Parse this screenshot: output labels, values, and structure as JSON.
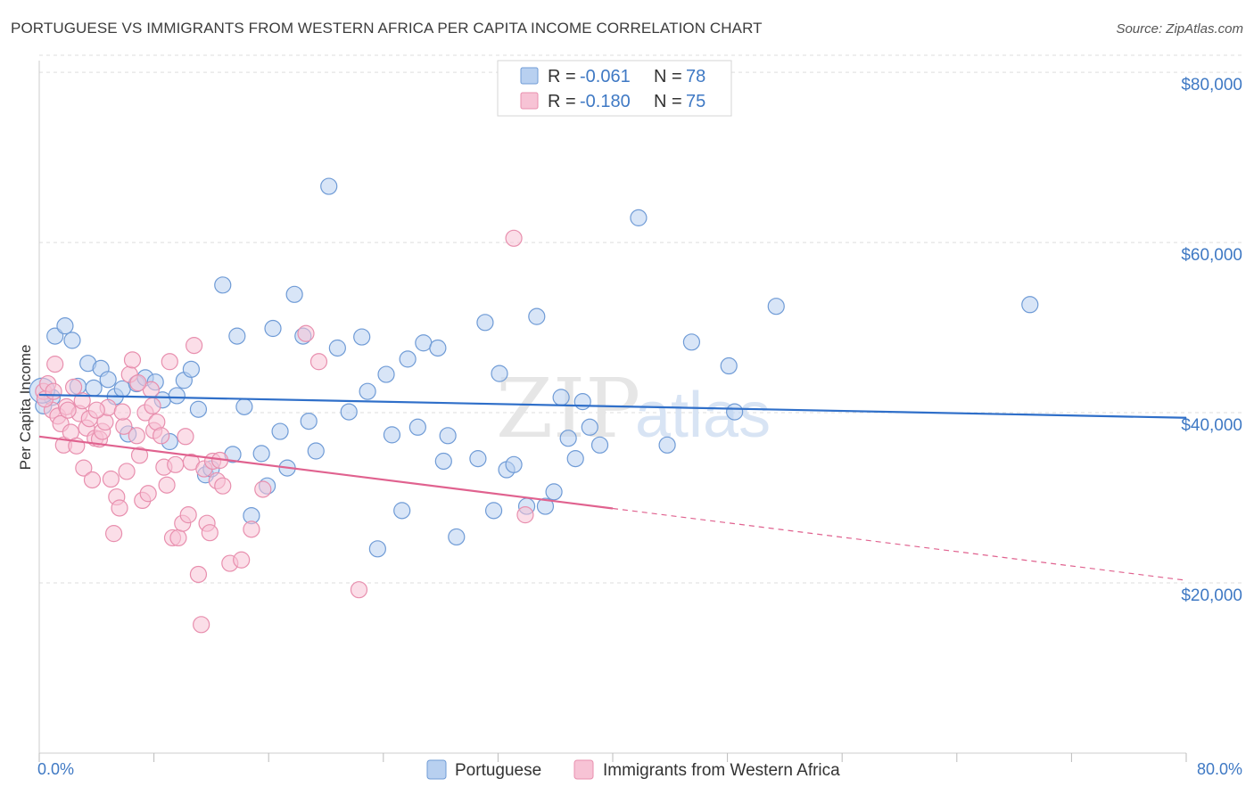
{
  "title": "PORTUGUESE VS IMMIGRANTS FROM WESTERN AFRICA PER CAPITA INCOME CORRELATION CHART",
  "source": "Source: ZipAtlas.com",
  "watermark": {
    "part1": "ZIP",
    "part2": "atlas"
  },
  "colors": {
    "portuguese_fill": "#b8d0f0",
    "portuguese_stroke": "#6f9bd6",
    "portuguese_line": "#2f6fc9",
    "western_africa_fill": "#f7c3d5",
    "western_africa_stroke": "#e88fae",
    "western_africa_line": "#e0628f",
    "axis_text": "#3f79c4",
    "grid": "#dddddd"
  },
  "legend": {
    "rows": [
      {
        "r_label": "R = ",
        "r_value": "-0.061",
        "n_label": "N = ",
        "n_value": "78"
      },
      {
        "r_label": "R = ",
        "r_value": "-0.180",
        "n_label": "N = ",
        "n_value": "75"
      }
    ]
  },
  "chart_data": {
    "type": "scatter",
    "title": "PORTUGUESE VS IMMIGRANTS FROM WESTERN AFRICA PER CAPITA INCOME CORRELATION CHART",
    "xlabel": "",
    "ylabel": "Per Capita Income",
    "xlim": [
      0,
      80
    ],
    "ylim": [
      0,
      82000
    ],
    "x_tick_labels": [
      "0.0%",
      "80.0%"
    ],
    "y_ticks": [
      20000,
      40000,
      60000,
      80000
    ],
    "y_tick_labels": [
      "$20,000",
      "$40,000",
      "$60,000",
      "$80,000"
    ],
    "grid": true,
    "legend_position": "top-center",
    "series": [
      {
        "name": "Portuguese",
        "r": -0.061,
        "n": 78,
        "trend": {
          "x": [
            0,
            80
          ],
          "y": [
            42100,
            39400
          ],
          "dashed_from": null
        },
        "points": [
          [
            0.3,
            40800
          ],
          [
            0.9,
            41800
          ],
          [
            1.1,
            49000
          ],
          [
            1.8,
            50200
          ],
          [
            2.3,
            48500
          ],
          [
            2.7,
            43100
          ],
          [
            3.4,
            45800
          ],
          [
            3.8,
            42900
          ],
          [
            4.3,
            45200
          ],
          [
            4.8,
            43900
          ],
          [
            5.3,
            41900
          ],
          [
            5.8,
            42800
          ],
          [
            6.2,
            37500
          ],
          [
            6.8,
            43400
          ],
          [
            7.4,
            44100
          ],
          [
            8.1,
            43600
          ],
          [
            8.6,
            41500
          ],
          [
            9.1,
            36600
          ],
          [
            9.6,
            42000
          ],
          [
            10.1,
            43800
          ],
          [
            10.6,
            45100
          ],
          [
            11.1,
            40400
          ],
          [
            11.6,
            32700
          ],
          [
            12.0,
            33400
          ],
          [
            12.8,
            55000
          ],
          [
            13.5,
            35100
          ],
          [
            13.8,
            49000
          ],
          [
            14.3,
            40700
          ],
          [
            14.8,
            27900
          ],
          [
            15.5,
            35200
          ],
          [
            15.9,
            31400
          ],
          [
            16.3,
            49900
          ],
          [
            16.8,
            37800
          ],
          [
            17.3,
            33500
          ],
          [
            17.8,
            53900
          ],
          [
            18.4,
            49000
          ],
          [
            18.8,
            39000
          ],
          [
            19.3,
            35500
          ],
          [
            20.2,
            66600
          ],
          [
            20.8,
            47600
          ],
          [
            21.6,
            40100
          ],
          [
            22.5,
            48900
          ],
          [
            22.9,
            42500
          ],
          [
            23.6,
            24000
          ],
          [
            24.2,
            44500
          ],
          [
            24.6,
            37400
          ],
          [
            25.3,
            28500
          ],
          [
            25.7,
            46300
          ],
          [
            26.4,
            38300
          ],
          [
            26.8,
            48200
          ],
          [
            27.8,
            47600
          ],
          [
            28.2,
            34300
          ],
          [
            28.5,
            37300
          ],
          [
            29.1,
            25400
          ],
          [
            30.6,
            34600
          ],
          [
            31.1,
            50600
          ],
          [
            31.7,
            28500
          ],
          [
            32.1,
            44600
          ],
          [
            32.6,
            33300
          ],
          [
            33.1,
            33900
          ],
          [
            34.0,
            29000
          ],
          [
            34.7,
            51300
          ],
          [
            35.3,
            29000
          ],
          [
            35.9,
            30700
          ],
          [
            36.4,
            41800
          ],
          [
            36.9,
            37000
          ],
          [
            37.4,
            34600
          ],
          [
            37.9,
            41300
          ],
          [
            38.4,
            38300
          ],
          [
            39.1,
            36200
          ],
          [
            41.8,
            62900
          ],
          [
            43.8,
            36200
          ],
          [
            45.5,
            48300
          ],
          [
            48.1,
            45500
          ],
          [
            48.5,
            40100
          ],
          [
            51.4,
            52500
          ],
          [
            69.1,
            52700
          ],
          [
            0.2,
            42600
          ]
        ]
      },
      {
        "name": "Immigrants from Western Africa",
        "r": -0.18,
        "n": 75,
        "trend": {
          "x": [
            0,
            80
          ],
          "y": [
            37200,
            20300
          ],
          "dashed_from": 40
        },
        "points": [
          [
            0.3,
            42500
          ],
          [
            0.6,
            43400
          ],
          [
            0.9,
            40300
          ],
          [
            1.1,
            45700
          ],
          [
            1.3,
            39600
          ],
          [
            1.5,
            38700
          ],
          [
            1.7,
            36200
          ],
          [
            1.9,
            40700
          ],
          [
            2.2,
            37700
          ],
          [
            2.4,
            43000
          ],
          [
            2.6,
            36100
          ],
          [
            2.8,
            39900
          ],
          [
            3.1,
            33500
          ],
          [
            3.3,
            38200
          ],
          [
            3.5,
            39300
          ],
          [
            3.7,
            32100
          ],
          [
            3.9,
            37000
          ],
          [
            4.2,
            36900
          ],
          [
            4.4,
            37800
          ],
          [
            4.6,
            38900
          ],
          [
            4.8,
            40600
          ],
          [
            5.0,
            32200
          ],
          [
            5.2,
            25800
          ],
          [
            5.4,
            30100
          ],
          [
            5.6,
            28800
          ],
          [
            5.9,
            38400
          ],
          [
            6.1,
            33100
          ],
          [
            6.3,
            44500
          ],
          [
            6.5,
            46200
          ],
          [
            6.8,
            37300
          ],
          [
            7.0,
            35000
          ],
          [
            7.2,
            29700
          ],
          [
            7.4,
            40000
          ],
          [
            7.6,
            30500
          ],
          [
            7.8,
            42700
          ],
          [
            8.0,
            37900
          ],
          [
            8.2,
            38900
          ],
          [
            8.5,
            37300
          ],
          [
            8.7,
            33600
          ],
          [
            8.9,
            31500
          ],
          [
            9.1,
            46000
          ],
          [
            9.3,
            25300
          ],
          [
            9.5,
            33900
          ],
          [
            9.7,
            25300
          ],
          [
            10.0,
            27000
          ],
          [
            10.2,
            37200
          ],
          [
            10.4,
            28000
          ],
          [
            10.6,
            34200
          ],
          [
            10.8,
            47900
          ],
          [
            11.1,
            21000
          ],
          [
            11.3,
            15100
          ],
          [
            11.5,
            33400
          ],
          [
            11.7,
            27000
          ],
          [
            11.9,
            25900
          ],
          [
            12.1,
            34300
          ],
          [
            12.4,
            32000
          ],
          [
            12.6,
            34400
          ],
          [
            12.8,
            31400
          ],
          [
            13.3,
            22300
          ],
          [
            14.1,
            22700
          ],
          [
            14.8,
            26300
          ],
          [
            15.6,
            31000
          ],
          [
            18.6,
            49300
          ],
          [
            19.5,
            46000
          ],
          [
            22.3,
            19200
          ],
          [
            33.1,
            60500
          ],
          [
            33.9,
            28000
          ],
          [
            0.4,
            41600
          ],
          [
            1.0,
            42500
          ],
          [
            2.0,
            40300
          ],
          [
            3.0,
            41400
          ],
          [
            4.0,
            40300
          ],
          [
            5.8,
            40100
          ],
          [
            6.9,
            43500
          ],
          [
            7.9,
            40800
          ]
        ]
      }
    ]
  }
}
